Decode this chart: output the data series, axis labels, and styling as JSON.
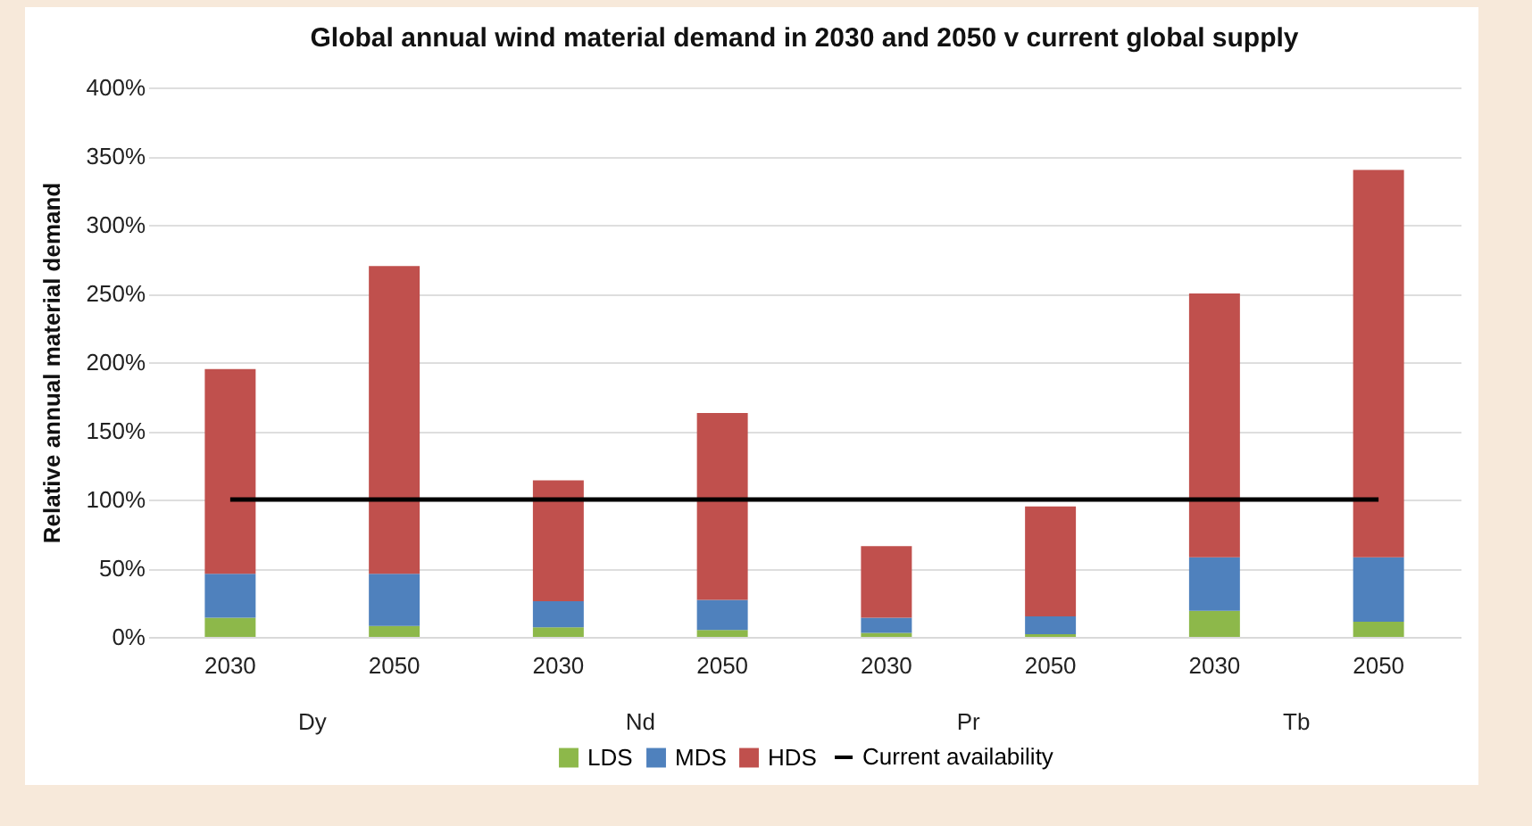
{
  "chart_data": {
    "type": "bar",
    "title": "Global annual wind material demand in 2030 and 2050 v current global supply",
    "ylabel": "Relative annual material demand",
    "categories": [
      "2030",
      "2050",
      "2030",
      "2050",
      "2030",
      "2050",
      "2030",
      "2050"
    ],
    "annotations": [
      "Dy",
      "Nd",
      "Pr",
      "Tb"
    ],
    "stacked": true,
    "series": [
      {
        "name": "LDS",
        "color": "#8db84a",
        "values": [
          14,
          8,
          7,
          5,
          3,
          2,
          19,
          11
        ]
      },
      {
        "name": "MDS",
        "color": "#4f81bd",
        "values": [
          32,
          38,
          19,
          22,
          11,
          13,
          39,
          47
        ]
      },
      {
        "name": "HDS",
        "color": "#c0504d",
        "values": [
          149,
          224,
          88,
          136,
          52,
          80,
          192,
          282
        ]
      }
    ],
    "ref_lines": [
      {
        "axis": "y",
        "value": 100,
        "label": "Current availability",
        "color": "#000000"
      }
    ],
    "ylim": [
      0,
      400
    ],
    "yticks": [
      {
        "value": 0,
        "label": "0%"
      },
      {
        "value": 50,
        "label": "50%"
      },
      {
        "value": 100,
        "label": "100%"
      },
      {
        "value": 150,
        "label": "150%"
      },
      {
        "value": 200,
        "label": "200%"
      },
      {
        "value": 250,
        "label": "250%"
      },
      {
        "value": 300,
        "label": "300%"
      },
      {
        "value": 350,
        "label": "350%"
      },
      {
        "value": 400,
        "label": "400%"
      }
    ],
    "grid": "y",
    "legend": "bottom"
  }
}
